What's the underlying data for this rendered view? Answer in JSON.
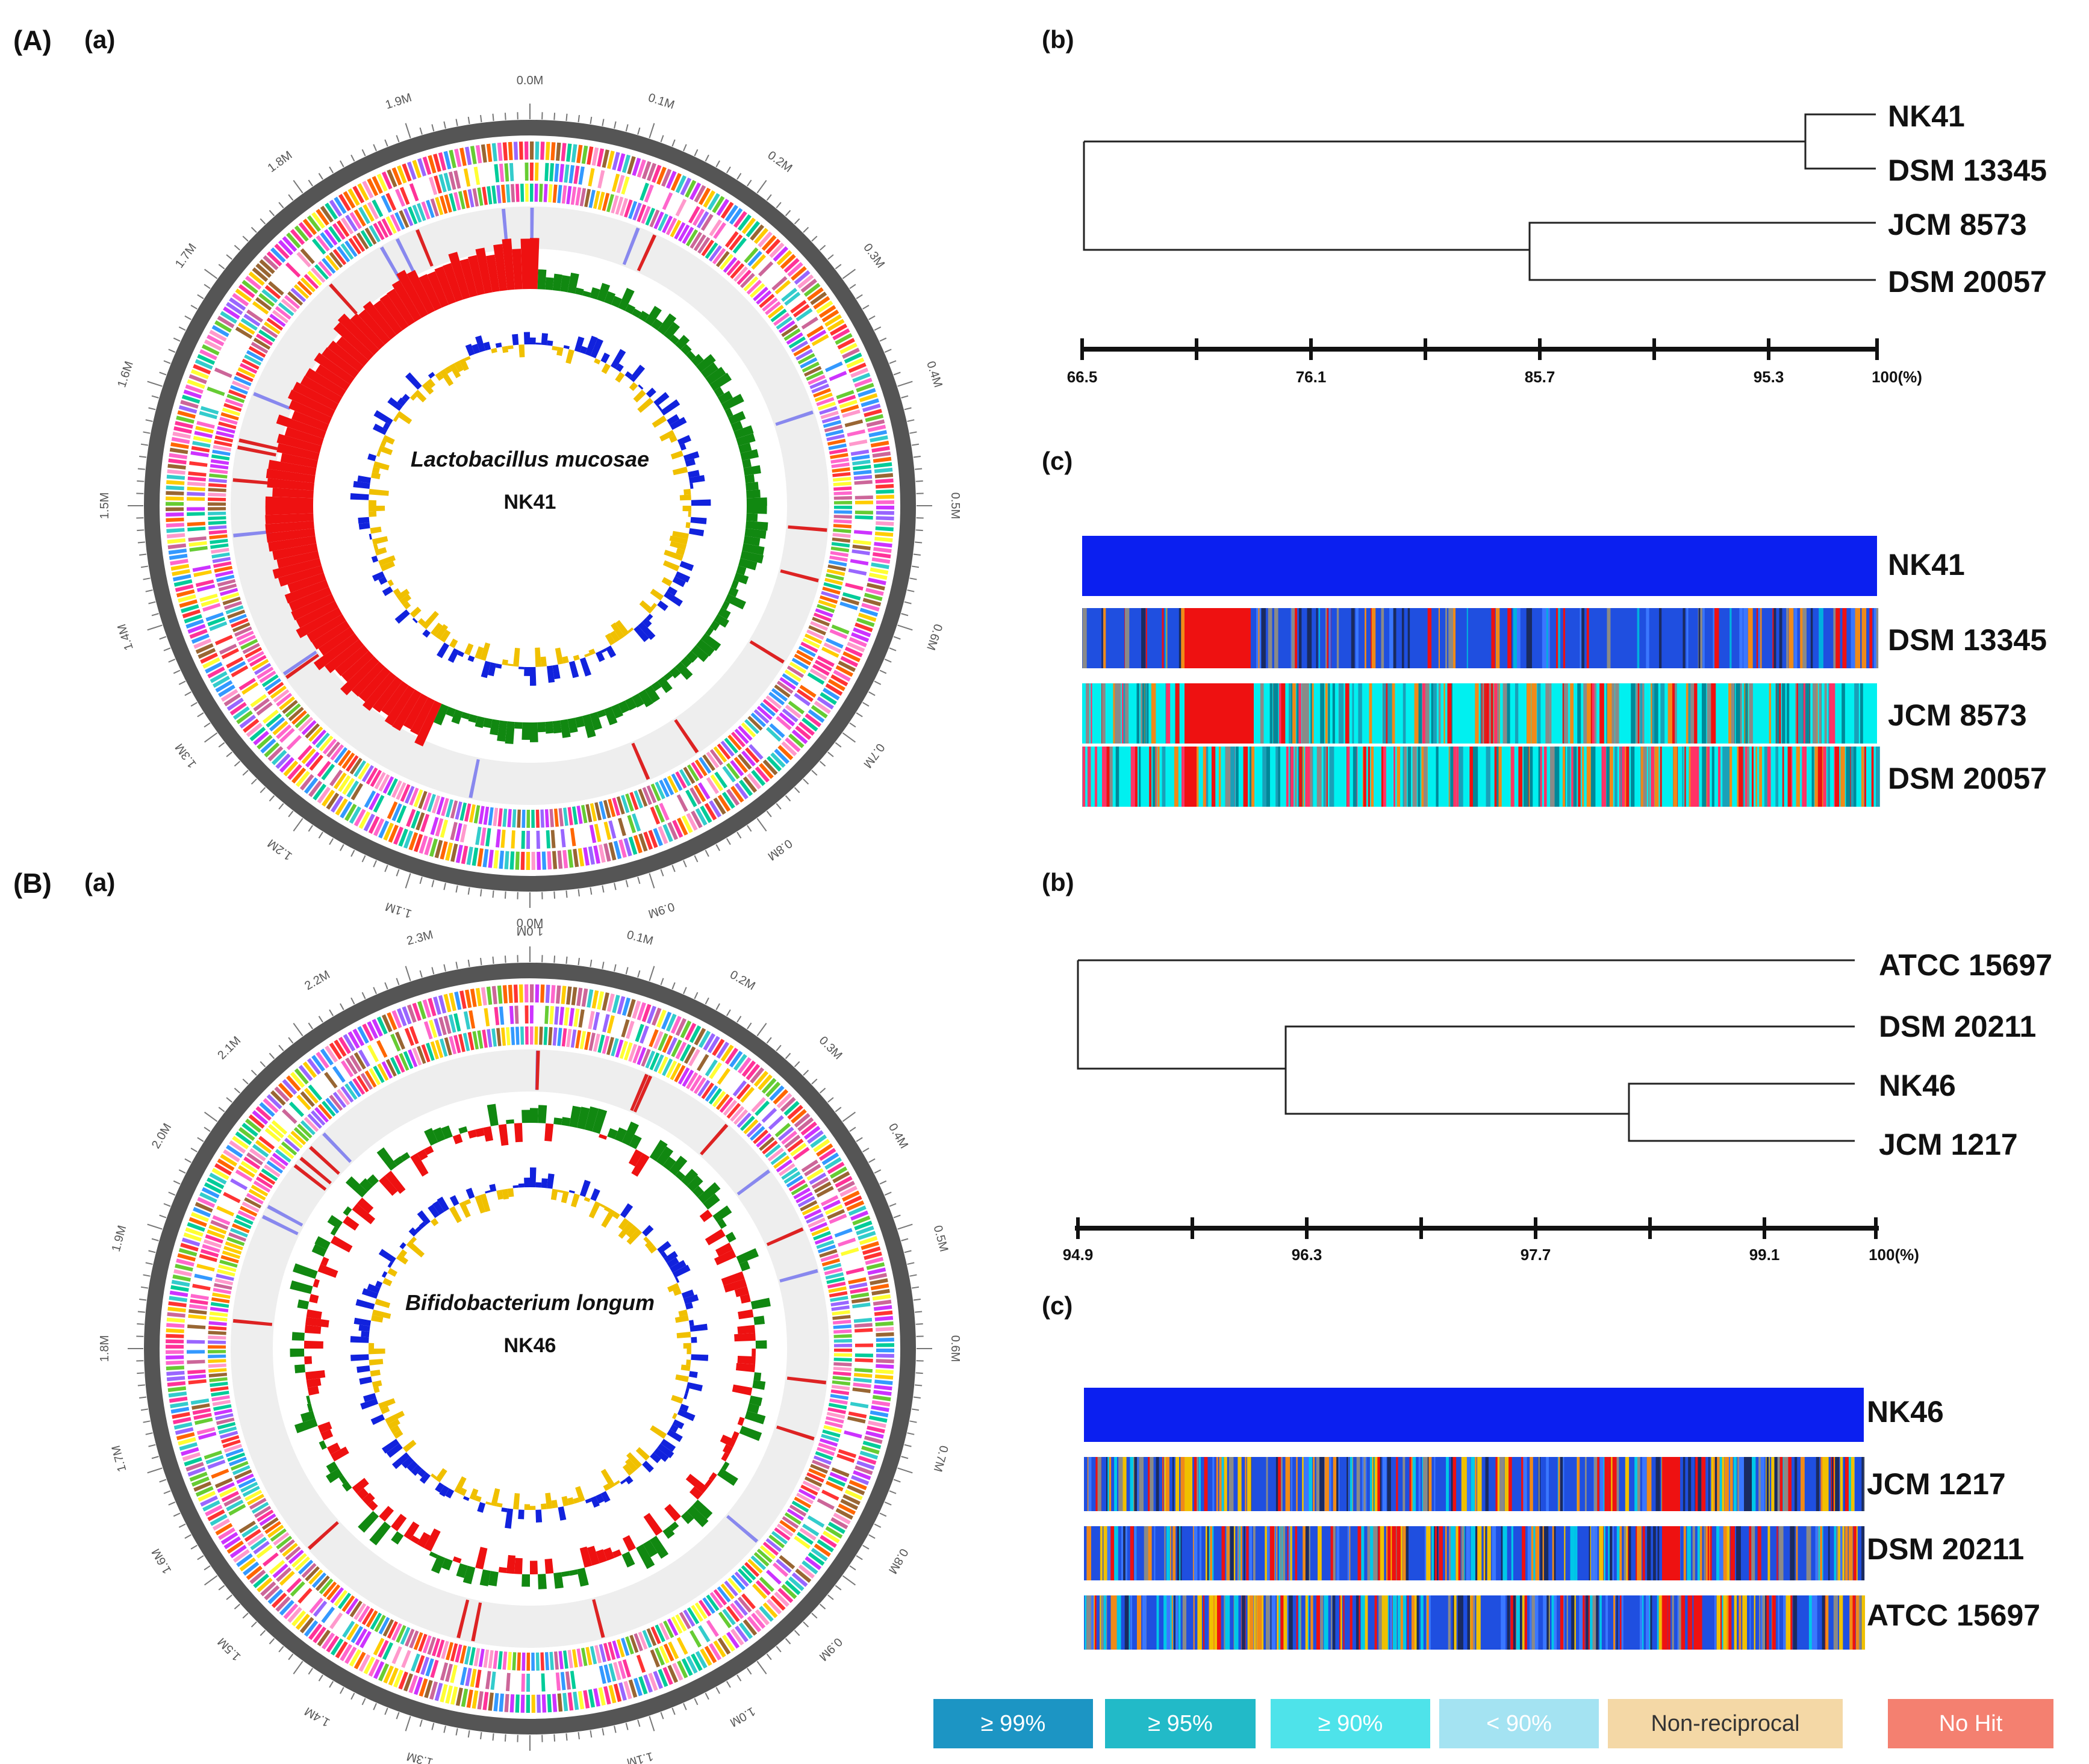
{
  "panels": {
    "A": {
      "label": "(A)",
      "a_label": "(a)",
      "b_label": "(b)",
      "c_label": "(c)",
      "genome": {
        "species": "Lactobacillus mucosae",
        "strain": "NK41",
        "positions": [
          "0.0M",
          "0.1M",
          "0.2M",
          "0.3M",
          "0.4M",
          "0.5M",
          "0.6M",
          "0.7M",
          "0.8M",
          "0.9M",
          "1.0M",
          "1.1M",
          "1.2M",
          "1.3M",
          "1.4M",
          "1.5M",
          "1.6M",
          "1.7M",
          "1.8M",
          "1.9M"
        ]
      },
      "dendrogram": {
        "leaves": [
          "NK41",
          "DSM 13345",
          "JCM 8573",
          "DSM 20057"
        ],
        "scale_labels": [
          "66.5",
          "76.1",
          "85.7",
          "95.3",
          "100(%)"
        ]
      },
      "heatmap": {
        "rows": [
          "NK41",
          "DSM 13345",
          "JCM 8573",
          "DSM 20057"
        ]
      }
    },
    "B": {
      "label": "(B)",
      "a_label": "(a)",
      "b_label": "(b)",
      "c_label": "(c)",
      "genome": {
        "species": "Bifidobacterium longum",
        "strain": "NK46",
        "positions": [
          "0.0M",
          "0.1M",
          "0.2M",
          "0.3M",
          "0.4M",
          "0.5M",
          "0.6M",
          "0.7M",
          "0.8M",
          "0.9M",
          "1.0M",
          "1.1M",
          "1.2M",
          "1.3M",
          "1.4M",
          "1.5M",
          "1.6M",
          "1.7M",
          "1.8M",
          "1.9M",
          "2.0M",
          "2.1M",
          "2.2M",
          "2.3M"
        ]
      },
      "dendrogram": {
        "leaves": [
          "ATCC 15697",
          "DSM 20211",
          "NK46",
          "JCM 1217"
        ],
        "scale_labels": [
          "94.9",
          "96.3",
          "97.7",
          "99.1",
          "100(%)"
        ]
      },
      "heatmap": {
        "rows": [
          "NK46",
          "JCM 1217",
          "DSM 20211",
          "ATCC 15697"
        ]
      }
    }
  },
  "legend": [
    {
      "label": "≥ 99%",
      "color": "#1c95c4"
    },
    {
      "label": "≥ 95%",
      "color": "#22bac8"
    },
    {
      "label": "≥ 90%",
      "color": "#4ee3ea"
    },
    {
      "label": "< 90%",
      "color": "#a4e3f2"
    },
    {
      "label": "Non-reciprocal",
      "color": "#f4d8a6"
    },
    {
      "label": "No Hit",
      "color": "#f48070"
    }
  ]
}
